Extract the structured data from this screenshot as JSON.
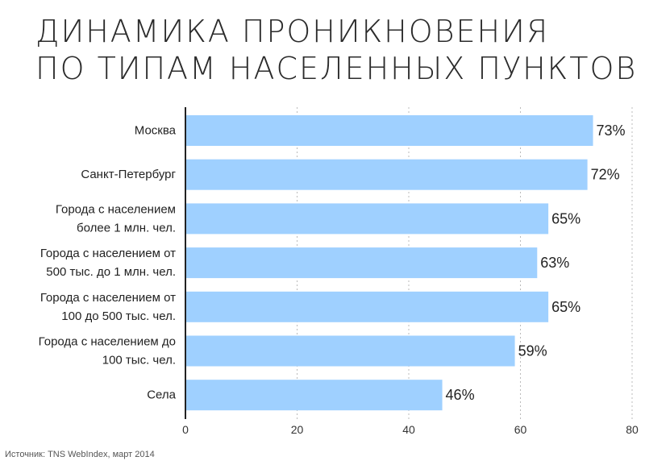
{
  "title_lines": [
    "ДИНАМИКА ПРОНИКНОВЕНИЯ",
    "ПО ТИПАМ НАСЕЛЕННЫХ ПУНКТОВ"
  ],
  "source": "Источник: TNS WebIndex, март 2014",
  "colors": {
    "bar": "#9fd0ff",
    "axis": "#222222",
    "grid": "#bbbbbb",
    "text": "#222222"
  },
  "chart_data": {
    "type": "bar",
    "orientation": "horizontal",
    "categories": [
      [
        "Москва"
      ],
      [
        "Санкт-Петербург"
      ],
      [
        "Города с населением",
        "более 1 млн. чел."
      ],
      [
        "Города с населением от",
        "500 тыс. до 1 млн. чел."
      ],
      [
        "Города с населением от",
        "100 до 500 тыс. чел."
      ],
      [
        "Города с населением до",
        "100 тыс. чел."
      ],
      [
        "Села"
      ]
    ],
    "values": [
      73,
      72,
      65,
      63,
      65,
      59,
      46
    ],
    "value_labels": [
      "73%",
      "72%",
      "65%",
      "63%",
      "65%",
      "59%",
      "46%"
    ],
    "xlim": [
      0,
      80
    ],
    "xticks": [
      0,
      20,
      40,
      60,
      80
    ],
    "grid": "vertical-dotted",
    "legend": "none"
  }
}
